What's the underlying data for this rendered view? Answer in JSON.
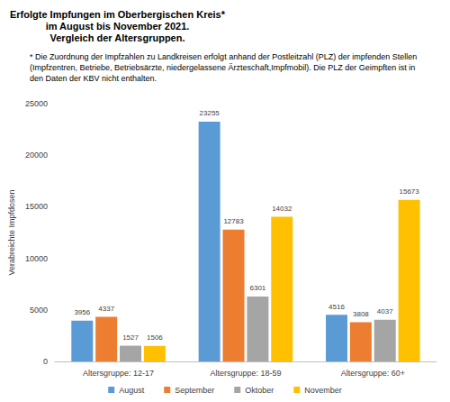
{
  "chart_data": {
    "type": "bar",
    "title": "Erfolgte Impfungen im Oberbergischen Kreis*\nim August bis November 2021.\nVergleich der Altersgruppen.",
    "subtitle": "* Die Zuordnung der Impfzahlen zu Landkreisen erfolgt anhand der Postleitzahl (PLZ) der impfenden Stellen (Impfzentren, Betriebe, Betriebsärzte, niedergelassene Ärzteschaft,Impfmobil). Die PLZ der Geimpften ist in den Daten der KBV nicht enthalten.",
    "ylabel": "Verabreichte Impfdosen",
    "categories": [
      "Altersgruppe: 12-17",
      "Altersgruppe: 18-59",
      "Altersgruppe: 60+"
    ],
    "series": [
      {
        "name": "August",
        "color": "#5b9bd5",
        "values": [
          3956,
          23255,
          4516
        ]
      },
      {
        "name": "September",
        "color": "#ed7d31",
        "values": [
          4337,
          12783,
          3808
        ]
      },
      {
        "name": "Oktober",
        "color": "#a5a5a5",
        "values": [
          1527,
          6301,
          4037
        ]
      },
      {
        "name": "November",
        "color": "#ffc000",
        "values": [
          1506,
          14032,
          15673
        ]
      }
    ],
    "ylim": [
      0,
      25000
    ],
    "yticks": [
      0,
      5000,
      10000,
      15000,
      20000,
      25000
    ],
    "grid": false,
    "legend": "bottom",
    "data_labels": true
  }
}
